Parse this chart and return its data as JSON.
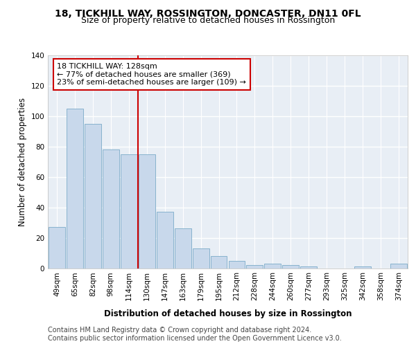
{
  "title": "18, TICKHILL WAY, ROSSINGTON, DONCASTER, DN11 0FL",
  "subtitle": "Size of property relative to detached houses in Rossington",
  "xlabel": "Distribution of detached houses by size in Rossington",
  "ylabel": "Number of detached properties",
  "bar_color": "#c8d8eb",
  "bar_edge_color": "#7aaac8",
  "background_color": "#e8eef5",
  "grid_color": "#ffffff",
  "annotation_line_color": "#cc0000",
  "annotation_box_color": "#cc0000",
  "annotation_text": "18 TICKHILL WAY: 128sqm\n← 77% of detached houses are smaller (369)\n23% of semi-detached houses are larger (109) →",
  "property_bin_index": 5,
  "categories": [
    "49sqm",
    "65sqm",
    "82sqm",
    "98sqm",
    "114sqm",
    "130sqm",
    "147sqm",
    "163sqm",
    "179sqm",
    "195sqm",
    "212sqm",
    "228sqm",
    "244sqm",
    "260sqm",
    "277sqm",
    "293sqm",
    "325sqm",
    "342sqm",
    "358sqm",
    "374sqm"
  ],
  "values": [
    27,
    105,
    95,
    78,
    75,
    75,
    37,
    26,
    13,
    8,
    5,
    2,
    3,
    2,
    1,
    0,
    0,
    1,
    0,
    3
  ],
  "ylim": [
    0,
    140
  ],
  "yticks": [
    0,
    20,
    40,
    60,
    80,
    100,
    120,
    140
  ],
  "footer": "Contains HM Land Registry data © Crown copyright and database right 2024.\nContains public sector information licensed under the Open Government Licence v3.0.",
  "title_fontsize": 10,
  "subtitle_fontsize": 9,
  "axis_label_fontsize": 8.5,
  "tick_fontsize": 7.5,
  "annotation_fontsize": 8,
  "footer_fontsize": 7
}
